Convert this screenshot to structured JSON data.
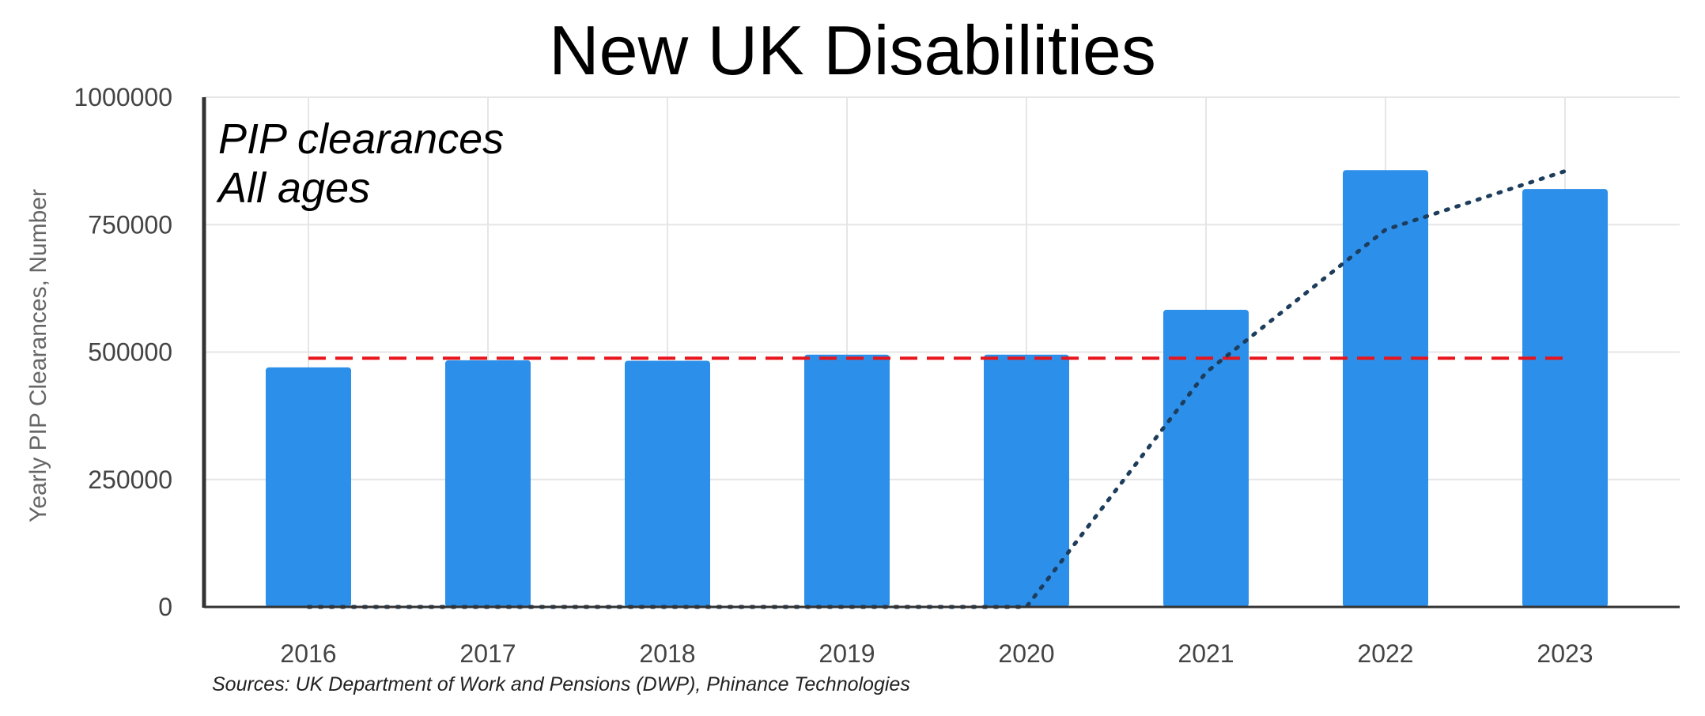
{
  "chart_data": {
    "type": "bar",
    "title": "New UK Disabilities",
    "annotation_lines": [
      "PIP clearances",
      "All ages"
    ],
    "ylabel": "Yearly PIP Clearances, Number",
    "xlabel": "",
    "source": "Sources: UK Department of Work and Pensions (DWP), Phinance Technologies",
    "ylim": [
      0,
      1000000
    ],
    "yticks": [
      0,
      250000,
      500000,
      750000,
      1000000
    ],
    "ytick_labels": [
      "0",
      "250000",
      "500000",
      "750000",
      "1000000"
    ],
    "grid": true,
    "categories": [
      "2016",
      "2017",
      "2018",
      "2019",
      "2020",
      "2021",
      "2022",
      "2023"
    ],
    "series": [
      {
        "name": "PIP clearances",
        "values": [
          470000,
          484000,
          483000,
          495000,
          495000,
          583000,
          857000,
          820000
        ]
      }
    ],
    "overlays": [
      {
        "name": "baseline-average",
        "style": "dashed",
        "x_range": [
          "2016",
          "2023"
        ],
        "value": 488000
      },
      {
        "name": "excess-trend",
        "style": "dotted",
        "values": [
          0,
          0,
          0,
          0,
          0,
          460000,
          740000,
          855000
        ]
      }
    ],
    "colors": {
      "bar": "#2c8fe9",
      "dashed": "#e8141b",
      "dotted": "#1d3d5c",
      "grid": "#e6e6e6",
      "axis": "#333333"
    }
  }
}
